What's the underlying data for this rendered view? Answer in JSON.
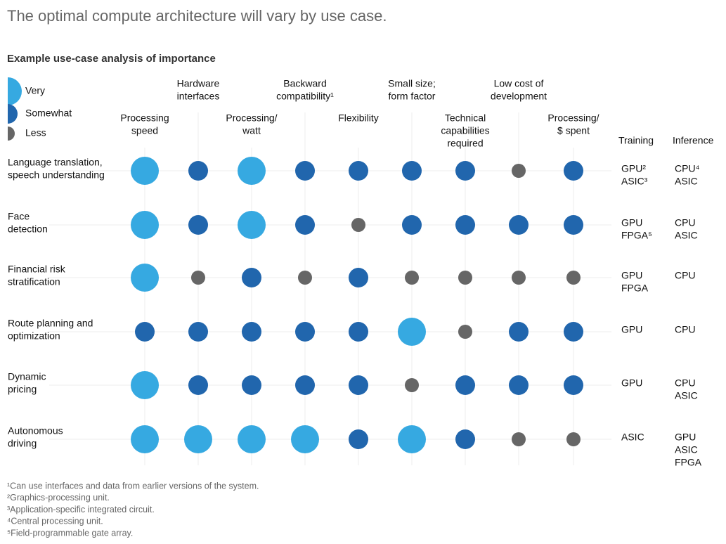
{
  "header": {
    "title": "The optimal compute architecture will vary by use case.",
    "subtitle": "Example use-case analysis of importance"
  },
  "legend": [
    {
      "label": "Very",
      "color": "#36a9e1"
    },
    {
      "label": "Somewhat",
      "color": "#2166ad"
    },
    {
      "label": "Less",
      "color": "#666666"
    }
  ],
  "columns": [
    [
      "Processing",
      "speed"
    ],
    [
      "Hardware",
      "interfaces"
    ],
    [
      "Processing/",
      "watt"
    ],
    [
      "Backward",
      "compatibility¹"
    ],
    [
      "Flexibility"
    ],
    [
      "Small size;",
      "form factor"
    ],
    [
      "Technical",
      "capabilities",
      "required"
    ],
    [
      "Low cost of",
      "development"
    ],
    [
      "Processing/",
      "$ spent"
    ]
  ],
  "training_header": "Training",
  "inference_header": "Inference",
  "rows": [
    {
      "label": [
        "Language translation,",
        "speech understanding"
      ],
      "levels": [
        "Very",
        "Somewhat",
        "Very",
        "Somewhat",
        "Somewhat",
        "Somewhat",
        "Somewhat",
        "Less",
        "Somewhat"
      ],
      "training": [
        "GPU²",
        "ASIC³"
      ],
      "inference": [
        "CPU⁴",
        "ASIC"
      ]
    },
    {
      "label": [
        "Face",
        "detection"
      ],
      "levels": [
        "Very",
        "Somewhat",
        "Very",
        "Somewhat",
        "Less",
        "Somewhat",
        "Somewhat",
        "Somewhat",
        "Somewhat"
      ],
      "training": [
        "GPU",
        "FPGA⁵"
      ],
      "inference": [
        "CPU",
        "ASIC"
      ]
    },
    {
      "label": [
        "Financial risk",
        "stratification"
      ],
      "levels": [
        "Very",
        "Less",
        "Somewhat",
        "Less",
        "Somewhat",
        "Less",
        "Less",
        "Less",
        "Less"
      ],
      "training": [
        "GPU",
        "FPGA"
      ],
      "inference": [
        "CPU"
      ]
    },
    {
      "label": [
        "Route planning and",
        "optimization"
      ],
      "levels": [
        "Somewhat",
        "Somewhat",
        "Somewhat",
        "Somewhat",
        "Somewhat",
        "Very",
        "Less",
        "Somewhat",
        "Somewhat"
      ],
      "training": [
        "GPU"
      ],
      "inference": [
        "CPU"
      ]
    },
    {
      "label": [
        "Dynamic",
        "pricing"
      ],
      "levels": [
        "Very",
        "Somewhat",
        "Somewhat",
        "Somewhat",
        "Somewhat",
        "Less",
        "Somewhat",
        "Somewhat",
        "Somewhat"
      ],
      "training": [
        "GPU"
      ],
      "inference": [
        "CPU",
        "ASIC"
      ]
    },
    {
      "label": [
        "Autonomous",
        "driving"
      ],
      "levels": [
        "Very",
        "Very",
        "Very",
        "Very",
        "Somewhat",
        "Very",
        "Somewhat",
        "Less",
        "Less"
      ],
      "training": [
        "ASIC"
      ],
      "inference": [
        "GPU",
        "ASIC",
        "FPGA"
      ]
    }
  ],
  "footnotes": [
    "¹Can use interfaces and data from earlier versions of the system.",
    "²Graphics-processing unit.",
    "³Application-specific integrated circuit.",
    "⁴Central processing unit.",
    "⁵Field-programmable gate array."
  ]
}
